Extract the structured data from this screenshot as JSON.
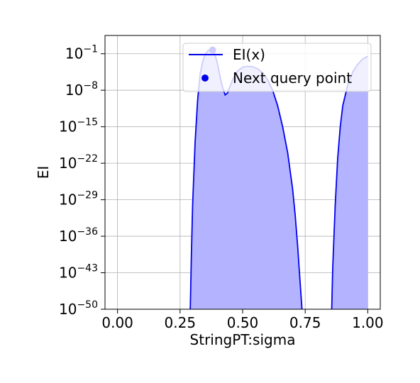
{
  "chart_data": {
    "type": "area",
    "title": "",
    "xlabel": "StringPT:sigma",
    "ylabel": "EI",
    "xlim": [
      -0.05,
      1.05
    ],
    "ylim_log10": [
      -50,
      2.5
    ],
    "y_scale": "log",
    "grid": true,
    "legend_position": "top-right",
    "x_ticks": [
      {
        "value": 0.0,
        "label": "0.00"
      },
      {
        "value": 0.25,
        "label": "0.25"
      },
      {
        "value": 0.5,
        "label": "0.50"
      },
      {
        "value": 0.75,
        "label": "0.75"
      },
      {
        "value": 1.0,
        "label": "1.00"
      }
    ],
    "y_ticks": [
      {
        "exp": -1,
        "base": "10",
        "sup": "−1"
      },
      {
        "exp": -8,
        "base": "10",
        "sup": "−8"
      },
      {
        "exp": -15,
        "base": "10",
        "sup": "−15"
      },
      {
        "exp": -22,
        "base": "10",
        "sup": "−22"
      },
      {
        "exp": -29,
        "base": "10",
        "sup": "−29"
      },
      {
        "exp": -36,
        "base": "10",
        "sup": "−36"
      },
      {
        "exp": -43,
        "base": "10",
        "sup": "−43"
      },
      {
        "exp": -50,
        "base": "10",
        "sup": "−50"
      }
    ],
    "series": [
      {
        "name": "EI(x)",
        "color": "#0000ee",
        "fill_color": "#b3b3ff",
        "segments": [
          [
            [
              0.29,
              -52
            ],
            [
              0.295,
              -40
            ],
            [
              0.3,
              -30
            ],
            [
              0.31,
              -18
            ],
            [
              0.32,
              -10
            ],
            [
              0.33,
              -5
            ],
            [
              0.34,
              -2.5
            ],
            [
              0.35,
              -1.2
            ],
            [
              0.36,
              -0.5
            ],
            [
              0.37,
              -0.2
            ],
            [
              0.38,
              -0.3
            ],
            [
              0.39,
              -1.2
            ],
            [
              0.4,
              -3.0
            ],
            [
              0.41,
              -5.5
            ],
            [
              0.42,
              -7.5
            ],
            [
              0.43,
              -8.9
            ],
            [
              0.44,
              -8.5
            ],
            [
              0.45,
              -7.2
            ],
            [
              0.46,
              -6.0
            ],
            [
              0.47,
              -5.0
            ],
            [
              0.48,
              -4.3
            ],
            [
              0.5,
              -3.6
            ],
            [
              0.52,
              -3.4
            ],
            [
              0.54,
              -3.5
            ],
            [
              0.56,
              -3.9
            ],
            [
              0.58,
              -4.7
            ],
            [
              0.6,
              -6.0
            ],
            [
              0.62,
              -8.0
            ],
            [
              0.64,
              -11.0
            ],
            [
              0.66,
              -15.0
            ],
            [
              0.68,
              -20.0
            ],
            [
              0.7,
              -27.0
            ],
            [
              0.71,
              -32.0
            ],
            [
              0.72,
              -38.0
            ],
            [
              0.73,
              -45.0
            ],
            [
              0.74,
              -52.0
            ]
          ],
          [
            [
              0.855,
              -52.0
            ],
            [
              0.86,
              -42.0
            ],
            [
              0.87,
              -30.0
            ],
            [
              0.88,
              -21.0
            ],
            [
              0.89,
              -15.0
            ],
            [
              0.9,
              -11.0
            ],
            [
              0.92,
              -7.0
            ],
            [
              0.94,
              -4.5
            ],
            [
              0.96,
              -3.0
            ],
            [
              0.98,
              -2.0
            ],
            [
              1.0,
              -1.5
            ]
          ]
        ]
      },
      {
        "name": "Next query point",
        "color": "#0000ee",
        "points": [
          [
            0.38,
            -0.3
          ]
        ]
      }
    ]
  }
}
